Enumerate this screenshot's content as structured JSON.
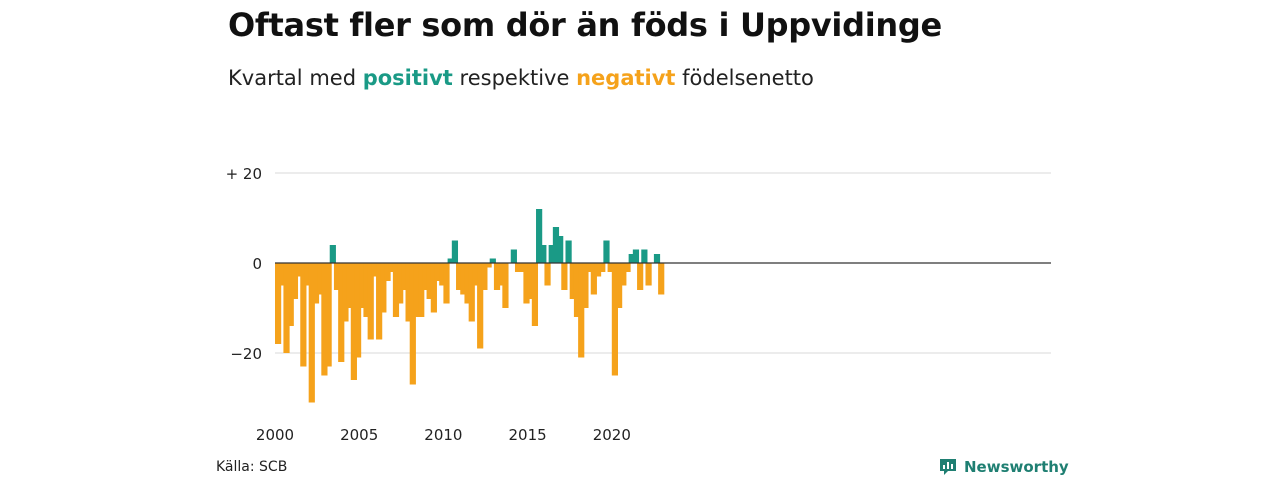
{
  "header": {
    "title": "Oftast fler som dör än föds i Uppvidinge",
    "subtitle_prefix": "Kvartal med",
    "subtitle_positive": "positivt",
    "subtitle_middle": "respektive",
    "subtitle_negative": "negativt",
    "subtitle_suffix": "födelsenetto"
  },
  "footer": {
    "source": "Källa: SCB",
    "brand": "Newsworthy"
  },
  "colors": {
    "positive": "#1a9a86",
    "negative": "#f5a21b",
    "grid": "#d9d9d9",
    "zero_line": "#333333"
  },
  "chart_data": {
    "type": "bar",
    "title": "Oftast fler som dör än föds i Uppvidinge",
    "subtitle": "Kvartal med positivt respektive negativt födelsenetto",
    "ylim": [
      -32,
      21
    ],
    "y_ticks": [
      {
        "value": 20,
        "label": "+ 20"
      },
      {
        "value": 0,
        "label": "0"
      },
      {
        "value": -20,
        "label": "−20"
      }
    ],
    "x_ticks": [
      "2000",
      "2005",
      "2010",
      "2015",
      "2020"
    ],
    "start_year": 2000,
    "periods_per_year": 4,
    "values": [
      -18,
      -5,
      -20,
      -14,
      -8,
      -3,
      -23,
      -5,
      -31,
      -9,
      -7,
      -25,
      -23,
      4,
      -6,
      -22,
      -13,
      -10,
      -26,
      -21,
      -10,
      -12,
      -17,
      -3,
      -17,
      -11,
      -4,
      -2,
      -12,
      -9,
      -6,
      -13,
      -27,
      -12,
      -12,
      -6,
      -8,
      -11,
      -4,
      -5,
      -9,
      1,
      5,
      -6,
      -7,
      -9,
      -13,
      -5,
      -19,
      -6,
      -1,
      1,
      -6,
      -5,
      -10,
      0,
      3,
      -2,
      -2,
      -9,
      -8,
      -14,
      12,
      4,
      -5,
      4,
      8,
      6,
      -6,
      5,
      -8,
      -12,
      -21,
      -10,
      -2,
      -7,
      -3,
      -2,
      5,
      -2,
      -25,
      -10,
      -5,
      -2,
      2,
      3,
      -6,
      3,
      -5,
      0,
      2,
      -7
    ]
  }
}
